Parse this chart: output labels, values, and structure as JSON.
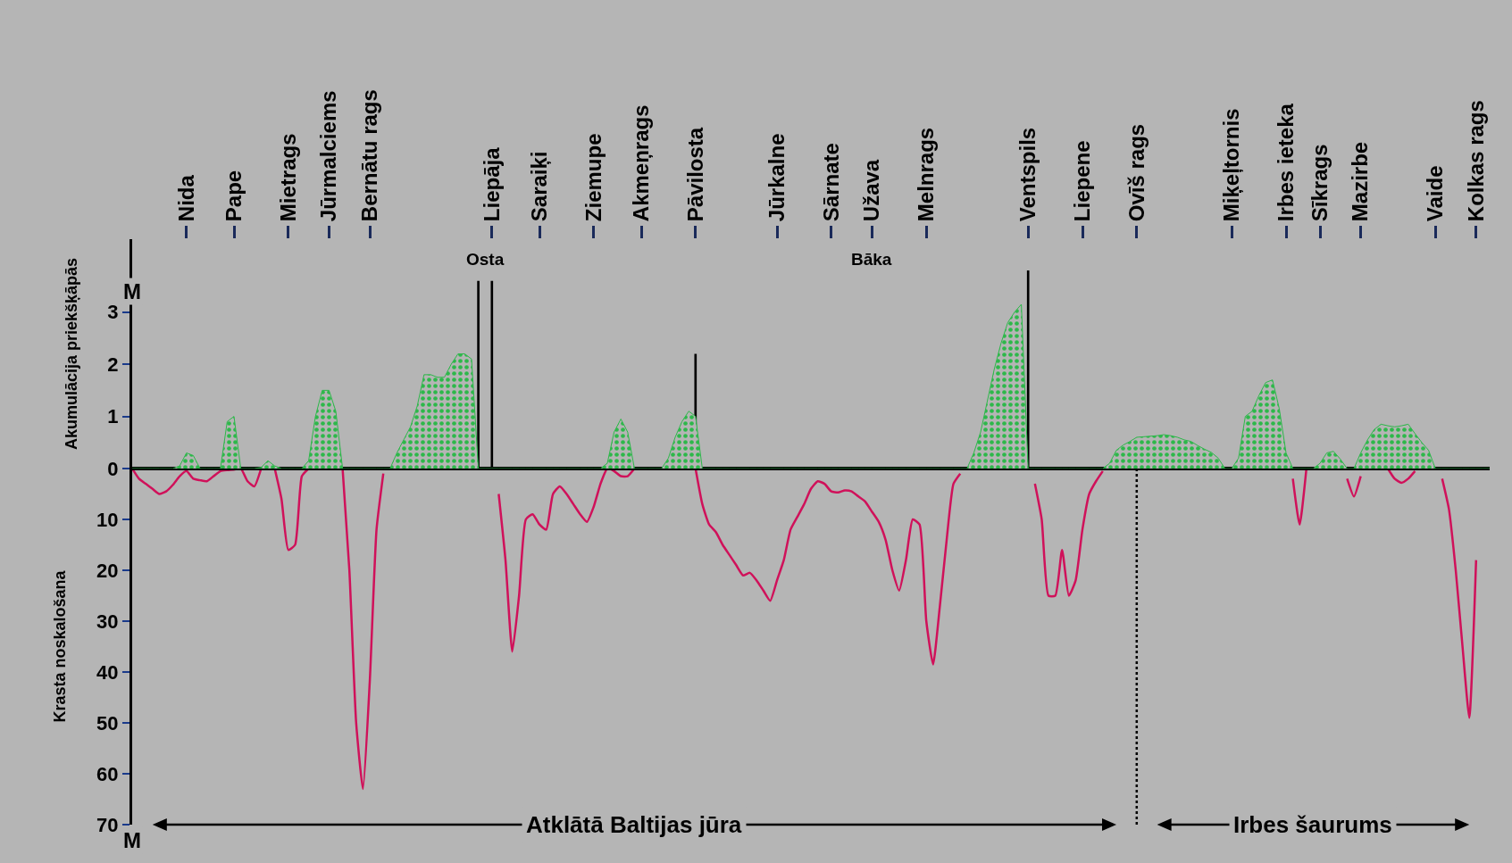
{
  "chart_data": [
    {
      "type": "area",
      "ylabel": "Akumulācija priekšķāpās",
      "ylim": [
        0,
        4.4
      ],
      "yticks": [
        0,
        1,
        2,
        3
      ],
      "categories": [
        null,
        null,
        null,
        null,
        null,
        null,
        null,
        null,
        "Nida",
        null,
        null,
        null,
        null,
        null,
        null,
        "Pape",
        null,
        null,
        null,
        null,
        null,
        null,
        null,
        "Mietrags",
        null,
        null,
        null,
        null,
        null,
        "Jūrmalciems",
        null,
        null,
        null,
        null,
        null,
        "Bernātu rags",
        null,
        null,
        null,
        null,
        null,
        null,
        null,
        null,
        null,
        null,
        null,
        null,
        null,
        null,
        null,
        null,
        null,
        "Liepāja",
        null,
        null,
        null,
        null,
        null,
        null,
        "Saraiķi",
        null,
        null,
        null,
        null,
        null,
        null,
        null,
        "Ziemupe",
        null,
        null,
        null,
        null,
        null,
        null,
        "Akmeņrags",
        null,
        null,
        null,
        null,
        null,
        null,
        null,
        "Pāvilosta",
        null,
        null,
        null,
        null,
        null,
        null,
        null,
        null,
        null,
        null,
        null,
        "Jūrkalne",
        null,
        null,
        null,
        null,
        null,
        null,
        null,
        "Sārnate",
        null,
        null,
        null,
        null,
        null,
        "Užava",
        null,
        null,
        null,
        null,
        null,
        null,
        null,
        "Melnrags",
        null,
        null,
        null,
        null,
        null,
        null,
        null,
        null,
        null,
        null,
        null,
        null,
        null,
        null,
        "Ventspils",
        null,
        null,
        null,
        null,
        null,
        null,
        null,
        "Liepene",
        null,
        null,
        null,
        null,
        null,
        null,
        null,
        "Ovīš rags",
        null,
        null,
        null,
        null,
        null,
        null,
        null,
        null,
        null,
        null,
        null,
        null,
        null,
        "Miķeļtornis",
        null,
        null,
        null,
        null,
        null,
        null,
        null,
        "Irbes ieteka",
        null,
        null,
        null,
        null,
        "Sīkrags",
        null,
        null,
        null,
        null,
        null,
        "Mazirbe",
        null,
        null,
        null,
        null,
        null,
        null,
        null,
        null,
        null,
        null,
        "Vaide",
        null,
        null,
        null,
        null,
        null,
        "Kolkas rags",
        null,
        null
      ],
      "series": [
        {
          "color": "#2db84a",
          "values": [
            0,
            0,
            0,
            0,
            0,
            0,
            0,
            0.05,
            0.3,
            0.25,
            0,
            0,
            0,
            0,
            0.9,
            1.0,
            0,
            0,
            0,
            0.02,
            0.15,
            0.05,
            0,
            0,
            0,
            0,
            0.15,
            1.0,
            1.5,
            1.5,
            1.1,
            0,
            0,
            0,
            0,
            0,
            0,
            0,
            0,
            0.3,
            0.55,
            0.8,
            1.2,
            1.8,
            1.8,
            1.75,
            1.75,
            2.0,
            2.2,
            2.2,
            2.1,
            0,
            0,
            0,
            0,
            0,
            0,
            0,
            0,
            0,
            0,
            0,
            0,
            0,
            0,
            0,
            0,
            0,
            0,
            0,
            0.1,
            0.7,
            0.95,
            0.7,
            0,
            0,
            0,
            0,
            0,
            0.2,
            0.6,
            0.9,
            1.1,
            1.0,
            0,
            0,
            0,
            0,
            0,
            0,
            0,
            0,
            0,
            0,
            0,
            0,
            0,
            0,
            0,
            0,
            0,
            0,
            0,
            0,
            0,
            0,
            0,
            0,
            0,
            0,
            0,
            0,
            0,
            0,
            0,
            0,
            0,
            0,
            0,
            0,
            0,
            0,
            0,
            0,
            0.3,
            0.7,
            1.3,
            1.9,
            2.4,
            2.8,
            3.0,
            3.15,
            0,
            0,
            0,
            0,
            0,
            0,
            0,
            0,
            0,
            0,
            0,
            0,
            0.1,
            0.35,
            0.45,
            0.52,
            0.6,
            0.61,
            0.62,
            0.63,
            0.65,
            0.63,
            0.6,
            0.55,
            0.52,
            0.44,
            0.37,
            0.31,
            0.2,
            0,
            0,
            0.2,
            1.0,
            1.1,
            1.4,
            1.65,
            1.7,
            1.15,
            0.3,
            0,
            0,
            0,
            0,
            0.1,
            0.3,
            0.33,
            0.18,
            0,
            0,
            0.3,
            0.55,
            0.75,
            0.85,
            0.82,
            0.8,
            0.82,
            0.85,
            0.67,
            0.5,
            0.35,
            0,
            0,
            0,
            0,
            0,
            0,
            0,
            0,
            0
          ]
        },
        {
          "type": "bar",
          "name": "Osta",
          "color": "#000000",
          "values": [
            null,
            null,
            null,
            null,
            null,
            null,
            null,
            null,
            null,
            null,
            null,
            null,
            null,
            null,
            null,
            null,
            null,
            null,
            null,
            null,
            null,
            null,
            null,
            null,
            null,
            null,
            null,
            null,
            null,
            null,
            null,
            null,
            null,
            null,
            null,
            null,
            null,
            null,
            null,
            null,
            null,
            null,
            null,
            null,
            null,
            null,
            null,
            null,
            null,
            null,
            null,
            3.6,
            null,
            3.6,
            null,
            null,
            null,
            null,
            null,
            null,
            null,
            null,
            null,
            null,
            null,
            null,
            null,
            null,
            null,
            null,
            null,
            null,
            null,
            null,
            null,
            null,
            null,
            null,
            null,
            null,
            null,
            null,
            null,
            null,
            null,
            null,
            null,
            null,
            null,
            null,
            null,
            null,
            null,
            null,
            null,
            null,
            null,
            null,
            null,
            null,
            null,
            null,
            null,
            null,
            null,
            null,
            null,
            null,
            null,
            null,
            null,
            null,
            null,
            null,
            null,
            null,
            null,
            null,
            null,
            null,
            null,
            null,
            null,
            null,
            null,
            null,
            null,
            null,
            null,
            null,
            null,
            null,
            null,
            null,
            null,
            null,
            null,
            null,
            null,
            null,
            null,
            null,
            null,
            null,
            null,
            null,
            null,
            null,
            null,
            null,
            null,
            null,
            null,
            null,
            null,
            null,
            null,
            null,
            null,
            null,
            null,
            null,
            null,
            null,
            null,
            null,
            null,
            null,
            null,
            null,
            null,
            null,
            null,
            null,
            null,
            null,
            null,
            null,
            null,
            null,
            null,
            null,
            null,
            null,
            null,
            null,
            null,
            null,
            null,
            null,
            null,
            null,
            null,
            null,
            null,
            null,
            null,
            null,
            null,
            null,
            null
          ]
        },
        {
          "type": "bar",
          "color": "#000000",
          "values": [
            null,
            null,
            null,
            null,
            null,
            null,
            null,
            null,
            null,
            null,
            null,
            null,
            null,
            null,
            null,
            null,
            null,
            null,
            null,
            null,
            null,
            null,
            null,
            null,
            null,
            null,
            null,
            null,
            null,
            null,
            null,
            null,
            null,
            null,
            null,
            null,
            null,
            null,
            null,
            null,
            null,
            null,
            null,
            null,
            null,
            null,
            null,
            null,
            null,
            null,
            null,
            null,
            null,
            null,
            null,
            null,
            null,
            null,
            null,
            null,
            null,
            null,
            null,
            null,
            null,
            null,
            null,
            null,
            null,
            null,
            null,
            null,
            null,
            null,
            null,
            null,
            null,
            null,
            null,
            null,
            null,
            null,
            null,
            2.2,
            null,
            null,
            null,
            null,
            null,
            null,
            null,
            null,
            null,
            null,
            null,
            null,
            null,
            null,
            null,
            null,
            null,
            null,
            null,
            null,
            null,
            null,
            null,
            null,
            null,
            null,
            null,
            null,
            null,
            null,
            null,
            null,
            null,
            null,
            null,
            null,
            null,
            null,
            null,
            null,
            null,
            null,
            null,
            null,
            null,
            null,
            null,
            null,
            3.8,
            null,
            null,
            null,
            null,
            null,
            null,
            null,
            null,
            null,
            null,
            null,
            null,
            null,
            null,
            null,
            null,
            null,
            null,
            null,
            null,
            null,
            null,
            null,
            null,
            null,
            null,
            null,
            null,
            null,
            null,
            null,
            null,
            null,
            null,
            null,
            null,
            null,
            null,
            null,
            null,
            null,
            null,
            null,
            null,
            null,
            null,
            null,
            null,
            null,
            null,
            null,
            null,
            null,
            null,
            null,
            null,
            null,
            null,
            null,
            null,
            null,
            null,
            null,
            null,
            null,
            null,
            null,
            null
          ]
        }
      ],
      "annotations": [
        "M",
        "Bāka"
      ]
    },
    {
      "type": "line",
      "ylabel": "Krasta noskalošana",
      "ylim": [
        70,
        0
      ],
      "yticks": [
        10,
        20,
        30,
        40,
        50,
        60,
        70
      ],
      "tick_labels": "y",
      "categories": [
        null,
        null,
        null,
        null,
        null,
        null,
        null,
        null,
        "Nida",
        null,
        null,
        null,
        null,
        null,
        null,
        "Pape",
        null,
        null,
        null,
        null,
        null,
        null,
        null,
        "Mietrags",
        null,
        null,
        null,
        null,
        null,
        "Jūrmalciems",
        null,
        null,
        null,
        null,
        null,
        "Bernātu rags",
        null,
        null,
        null,
        null,
        null,
        null,
        null,
        null,
        null,
        null,
        null,
        null,
        null,
        null,
        null,
        null,
        null,
        "Liepāja",
        null,
        null,
        null,
        null,
        null,
        null,
        "Saraiķi",
        null,
        null,
        null,
        null,
        null,
        null,
        null,
        "Ziemupe",
        null,
        null,
        null,
        null,
        null,
        null,
        "Akmeņrags",
        null,
        null,
        null,
        null,
        null,
        null,
        null,
        "Pāvilosta",
        null,
        null,
        null,
        null,
        null,
        null,
        null,
        null,
        null,
        null,
        null,
        "Jūrkalne",
        null,
        null,
        null,
        null,
        null,
        null,
        null,
        "Sārnate",
        null,
        null,
        null,
        null,
        null,
        "Užava",
        null,
        null,
        null,
        null,
        null,
        null,
        null,
        "Melnrags",
        null,
        null,
        null,
        null,
        null,
        null,
        null,
        null,
        null,
        null,
        null,
        null,
        null,
        null,
        "Ventspils",
        null,
        null,
        null,
        null,
        null,
        null,
        null,
        "Liepene",
        null,
        null,
        null,
        null,
        null,
        null,
        null,
        "Ovīš rags",
        null,
        null,
        null,
        null,
        null,
        null,
        null,
        null,
        null,
        null,
        null,
        null,
        null,
        "Miķeļtornis",
        null,
        null,
        null,
        null,
        null,
        null,
        null,
        "Irbes ieteka",
        null,
        null,
        null,
        null,
        "Sīkrags",
        null,
        null,
        null,
        null,
        null,
        "Mazirbe",
        null,
        null,
        null,
        null,
        null,
        null,
        null,
        null,
        null,
        null,
        "Vaide",
        null,
        null,
        null,
        null,
        null,
        "Kolkas rags",
        null,
        null
      ],
      "series": [
        {
          "color": "#d0115a",
          "values": [
            0,
            2,
            3,
            4,
            5,
            4.5,
            3.2,
            1.5,
            0.5,
            2,
            2.3,
            2.5,
            1.5,
            0.5,
            0.3,
            0.2,
            0,
            2.5,
            3.5,
            0,
            null,
            0,
            6,
            16,
            15,
            1.5,
            0,
            null,
            null,
            null,
            null,
            0,
            20,
            50,
            63,
            42,
            12,
            1,
            null,
            null,
            null,
            null,
            null,
            null,
            null,
            null,
            null,
            null,
            null,
            null,
            null,
            null,
            null,
            null,
            5,
            18,
            36,
            25,
            10,
            9,
            11,
            12,
            5,
            3.5,
            5,
            7,
            9,
            10.5,
            7.5,
            3,
            0,
            0.5,
            1.5,
            1.5,
            0,
            null,
            null,
            null,
            null,
            null,
            null,
            null,
            null,
            0,
            7,
            11,
            12.5,
            15,
            17,
            19,
            21,
            20.5,
            22,
            24,
            26,
            22,
            18,
            12,
            9.5,
            7,
            4,
            2.5,
            3,
            4.5,
            4.7,
            4.3,
            4.5,
            5.5,
            6.5,
            8.5,
            10.5,
            14,
            20,
            24,
            18,
            10,
            11,
            30,
            38.5,
            27,
            14,
            3,
            1,
            null,
            null,
            null,
            null,
            null,
            null,
            null,
            null,
            null,
            null,
            3,
            10,
            25,
            25,
            16,
            25,
            22,
            12,
            5,
            2.5,
            0.5,
            null,
            null,
            null,
            null,
            null,
            null,
            null,
            null,
            null,
            null,
            null,
            null,
            null,
            null,
            null,
            null,
            null,
            null,
            null,
            null,
            null,
            null,
            null,
            null,
            null,
            null,
            null,
            2,
            11,
            0,
            null,
            null,
            null,
            null,
            null,
            2,
            5.5,
            1.5,
            null,
            null,
            null,
            0,
            2,
            2.8,
            2,
            0.5,
            null,
            null,
            null,
            2,
            8,
            20,
            35,
            49,
            18,
            null,
            null
          ]
        }
      ],
      "ref_lines": [
        {
          "axis": "x",
          "value": "Ovīš rags",
          "line_style": "dotted",
          "color": "#000000"
        }
      ],
      "annotations": [
        "M",
        "Atklātā Baltijas jūra",
        "Irbes šaurums"
      ]
    }
  ]
}
